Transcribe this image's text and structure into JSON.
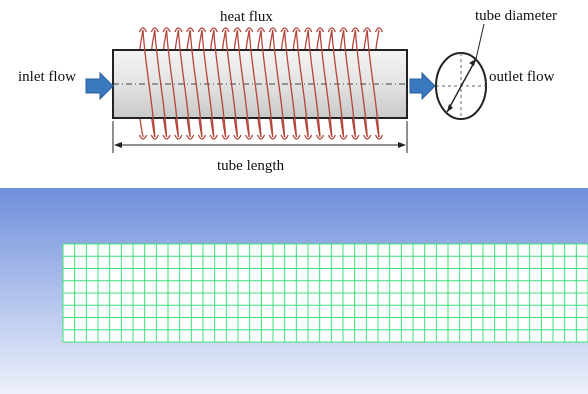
{
  "schematic": {
    "labels": {
      "heat_flux": "heat flux",
      "tube_diameter": "tube diameter",
      "inlet_flow": "inlet flow",
      "outlet_flow": "outlet flow",
      "tube_length": "tube length"
    },
    "colors": {
      "coil": "#b5443a",
      "arrow": "#3a78c0",
      "tube_fill_light": "#f4f4f4",
      "tube_fill_dark": "#c9c9c9",
      "outline": "#222222"
    },
    "coil_turns": 21
  },
  "mesh_view": {
    "colors": {
      "background_top": "#6f8fdc",
      "background_bottom": "#eef1fb",
      "mesh_lines": "#3fe07a",
      "mesh_fill": "#ffffff"
    },
    "axial_cells_visible": 45,
    "radial_cells": 8
  }
}
